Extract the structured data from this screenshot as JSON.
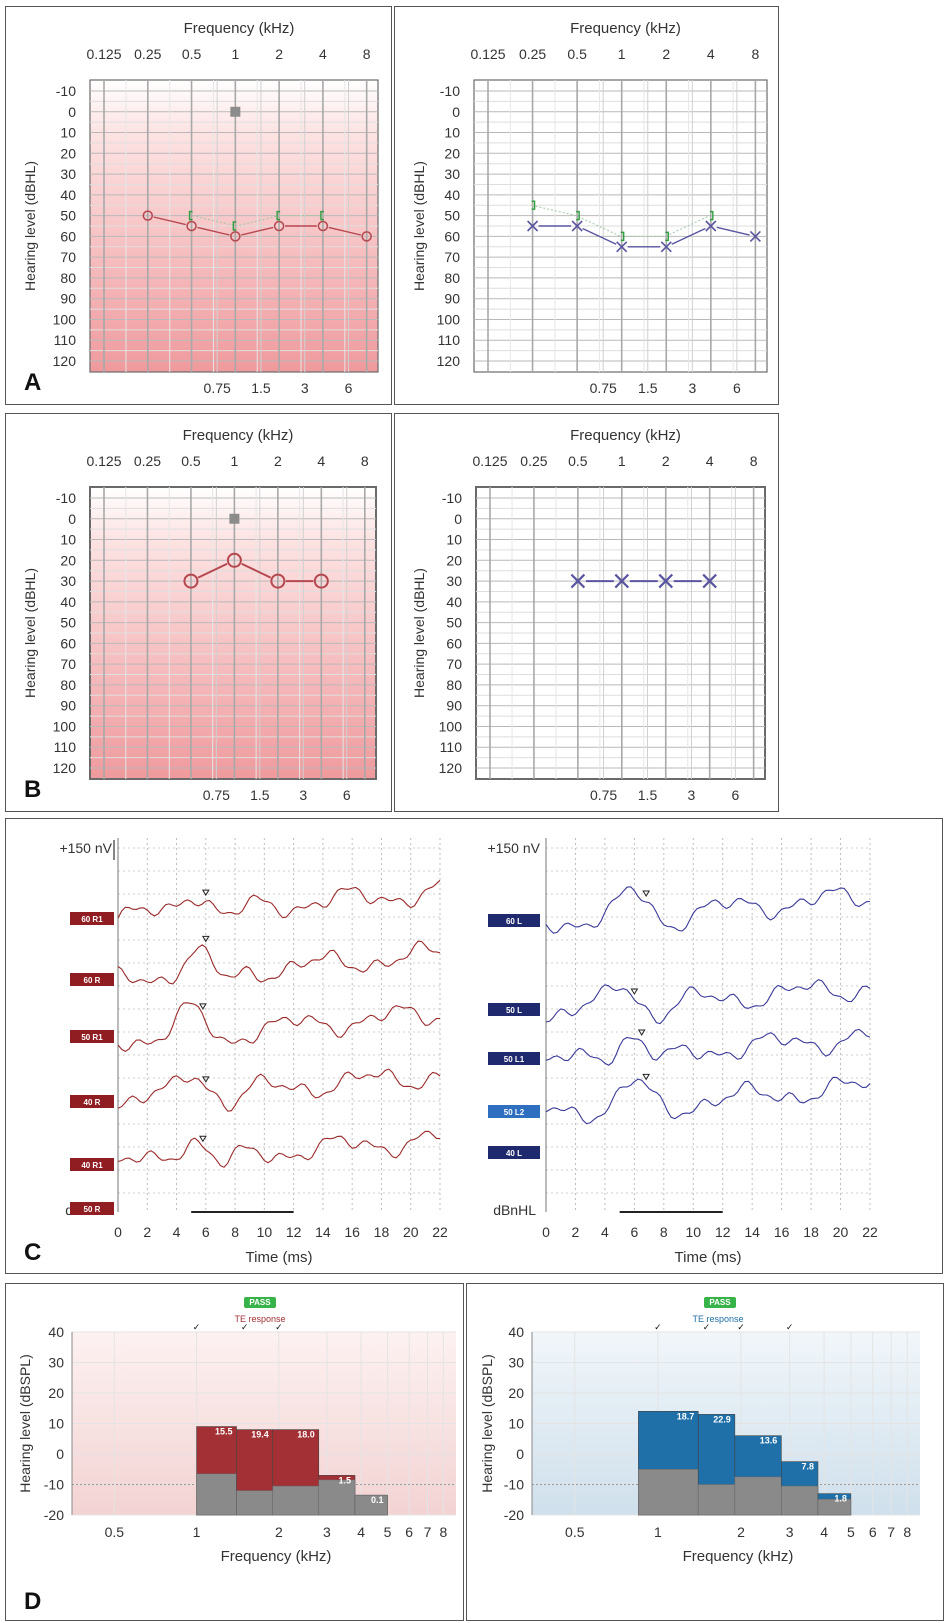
{
  "panel_labels": [
    "A",
    "B",
    "C",
    "D"
  ],
  "audiogram_common": {
    "title": "Frequency (kHz)",
    "ylabel": "Hearing level (dBHL)",
    "top_ticks": [
      "0.125",
      "0.25",
      "0.5",
      "1",
      "2",
      "4",
      "8"
    ],
    "bottom_ticks": [
      "0.75",
      "1.5",
      "3",
      "6"
    ],
    "y_ticks": [
      "-10",
      "0",
      "10",
      "20",
      "30",
      "40",
      "50",
      "60",
      "70",
      "80",
      "90",
      "100",
      "110",
      "120"
    ]
  },
  "chart_data": [
    {
      "id": "A-right",
      "type": "line",
      "title": "Frequency (kHz)",
      "xlabel": "Frequency (kHz)",
      "ylabel": "Hearing level (dBHL)",
      "ylim": [
        -10,
        120
      ],
      "background": "red-gradient",
      "series": [
        {
          "name": "",
          "marker": "circle",
          "color": "#b5474f",
          "x": [
            0.25,
            0.5,
            1,
            2,
            4,
            8
          ],
          "y": [
            50,
            55,
            60,
            55,
            55,
            60
          ]
        },
        {
          "name": "",
          "marker": "bracket-left",
          "color": "#2e9e3e",
          "x": [
            0.5,
            1,
            2,
            4
          ],
          "y": [
            50,
            55,
            50,
            50
          ]
        },
        {
          "name": "",
          "marker": "square",
          "color": "#8c8c8c",
          "x": [
            1
          ],
          "y": [
            0
          ]
        }
      ]
    },
    {
      "id": "A-left",
      "type": "line",
      "title": "Frequency (kHz)",
      "xlabel": "Frequency (kHz)",
      "ylabel": "Hearing level (dBHL)",
      "ylim": [
        -10,
        120
      ],
      "background": "white",
      "series": [
        {
          "name": "",
          "marker": "x",
          "color": "#5a55a0",
          "x": [
            0.25,
            0.5,
            1,
            2,
            4,
            8
          ],
          "y": [
            55,
            55,
            65,
            65,
            55,
            60
          ]
        },
        {
          "name": "",
          "marker": "bracket-right",
          "color": "#2e9e3e",
          "x": [
            0.25,
            0.5,
            1,
            2,
            4
          ],
          "y": [
            45,
            50,
            60,
            60,
            50
          ]
        }
      ]
    },
    {
      "id": "B-right",
      "type": "line",
      "title": "Frequency (kHz)",
      "xlabel": "Frequency (kHz)",
      "ylabel": "Hearing level (dBHL)",
      "ylim": [
        -10,
        120
      ],
      "background": "red-gradient",
      "series": [
        {
          "name": "",
          "marker": "circle",
          "color": "#b5474f",
          "x": [
            0.5,
            1,
            2,
            4
          ],
          "y": [
            30,
            20,
            30,
            30
          ]
        },
        {
          "name": "",
          "marker": "square",
          "color": "#8c8c8c",
          "x": [
            1
          ],
          "y": [
            0
          ]
        }
      ]
    },
    {
      "id": "B-left",
      "type": "line",
      "title": "Frequency (kHz)",
      "xlabel": "Frequency (kHz)",
      "ylabel": "Hearing level (dBHL)",
      "ylim": [
        -10,
        120
      ],
      "background": "white",
      "series": [
        {
          "name": "",
          "marker": "x",
          "color": "#5a55a0",
          "x": [
            0.5,
            1,
            2,
            4
          ],
          "y": [
            30,
            30,
            30,
            30
          ]
        }
      ]
    },
    {
      "id": "C-right",
      "type": "line",
      "xlabel": "Time (ms)",
      "ylabel": "dBnHL",
      "scale_label": "+150 nV",
      "x_ticks": [
        "0",
        "2",
        "4",
        "6",
        "8",
        "10",
        "12",
        "14",
        "16",
        "18",
        "20",
        "22"
      ],
      "xlim": [
        0,
        22
      ],
      "color": "#9b2a2a",
      "traces": [
        {
          "label": "60 R1",
          "wave_v_ms": 6.0
        },
        {
          "label": "60 R",
          "wave_v_ms": 6.0
        },
        {
          "label": "50 R1",
          "wave_v_ms": 5.8
        },
        {
          "label": "40 R",
          "wave_v_ms": 6.0
        },
        {
          "label": "40 R1",
          "wave_v_ms": 5.8
        },
        {
          "label": "50 R",
          "wave_v_ms": null
        }
      ]
    },
    {
      "id": "C-left",
      "type": "line",
      "xlabel": "Time (ms)",
      "ylabel": "dBnHL",
      "scale_label": "+150 nV",
      "x_ticks": [
        "0",
        "2",
        "4",
        "6",
        "8",
        "10",
        "12",
        "14",
        "16",
        "18",
        "20",
        "22"
      ],
      "xlim": [
        0,
        22
      ],
      "color": "#3a3a9a",
      "traces": [
        {
          "label": "60 L",
          "wave_v_ms": 6.8
        },
        {
          "label": "50 L",
          "wave_v_ms": 6.0
        },
        {
          "label": "50 L1",
          "wave_v_ms": 6.5
        },
        {
          "label": "50 L2",
          "wave_v_ms": 6.8
        },
        {
          "label": "40 L",
          "wave_v_ms": null
        }
      ]
    },
    {
      "id": "D-right",
      "type": "bar",
      "badge": "PASS",
      "subtitle": "TE response",
      "xlabel": "Frequency (kHz)",
      "ylabel": "Hearing level (dBSPL)",
      "ylim": [
        -20,
        40
      ],
      "y_ticks": [
        "40",
        "30",
        "20",
        "10",
        "0",
        "-10",
        "-20"
      ],
      "x_ticks": [
        "0.5",
        "1",
        "2",
        "3",
        "4",
        "5",
        "6",
        "7",
        "8"
      ],
      "bar_color": "#a33035",
      "noise_color": "#8a8a8a",
      "bars": [
        {
          "f_start": 1.0,
          "f_end": 1.4,
          "response": 9,
          "noise": -6.5,
          "snr": "15.5"
        },
        {
          "f_start": 1.4,
          "f_end": 1.9,
          "response": 8,
          "noise": -12,
          "snr": "19.4"
        },
        {
          "f_start": 1.9,
          "f_end": 2.8,
          "response": 8,
          "noise": -10.5,
          "snr": "18.0"
        },
        {
          "f_start": 2.8,
          "f_end": 3.8,
          "response": -7,
          "noise": -8.5,
          "snr": "1.5"
        },
        {
          "f_start": 3.8,
          "f_end": 5.0,
          "response": -13.5,
          "noise": -13.5,
          "snr": "0.1"
        }
      ],
      "check_marks_khz": [
        1.0,
        1.5,
        2.0
      ]
    },
    {
      "id": "D-left",
      "type": "bar",
      "badge": "PASS",
      "subtitle": "TE response",
      "xlabel": "Frequency (kHz)",
      "ylabel": "Hearing level (dBSPL)",
      "ylim": [
        -20,
        40
      ],
      "y_ticks": [
        "40",
        "30",
        "20",
        "10",
        "0",
        "-10",
        "-20"
      ],
      "x_ticks": [
        "0.5",
        "1",
        "2",
        "3",
        "4",
        "5",
        "6",
        "7",
        "8"
      ],
      "bar_color": "#1f6fa8",
      "noise_color": "#8a8a8a",
      "bars": [
        {
          "f_start": 0.85,
          "f_end": 1.4,
          "response": 14,
          "noise": -5,
          "snr": "18.7"
        },
        {
          "f_start": 1.4,
          "f_end": 1.9,
          "response": 13,
          "noise": -10,
          "snr": "22.9"
        },
        {
          "f_start": 1.9,
          "f_end": 2.8,
          "response": 6,
          "noise": -7.5,
          "snr": "13.6"
        },
        {
          "f_start": 2.8,
          "f_end": 3.8,
          "response": -2.5,
          "noise": -10.5,
          "snr": "7.8"
        },
        {
          "f_start": 3.8,
          "f_end": 5.0,
          "response": -13,
          "noise": -14.8,
          "snr": "1.8"
        }
      ],
      "check_marks_khz": [
        1.0,
        1.5,
        2.0,
        3.0
      ]
    }
  ]
}
